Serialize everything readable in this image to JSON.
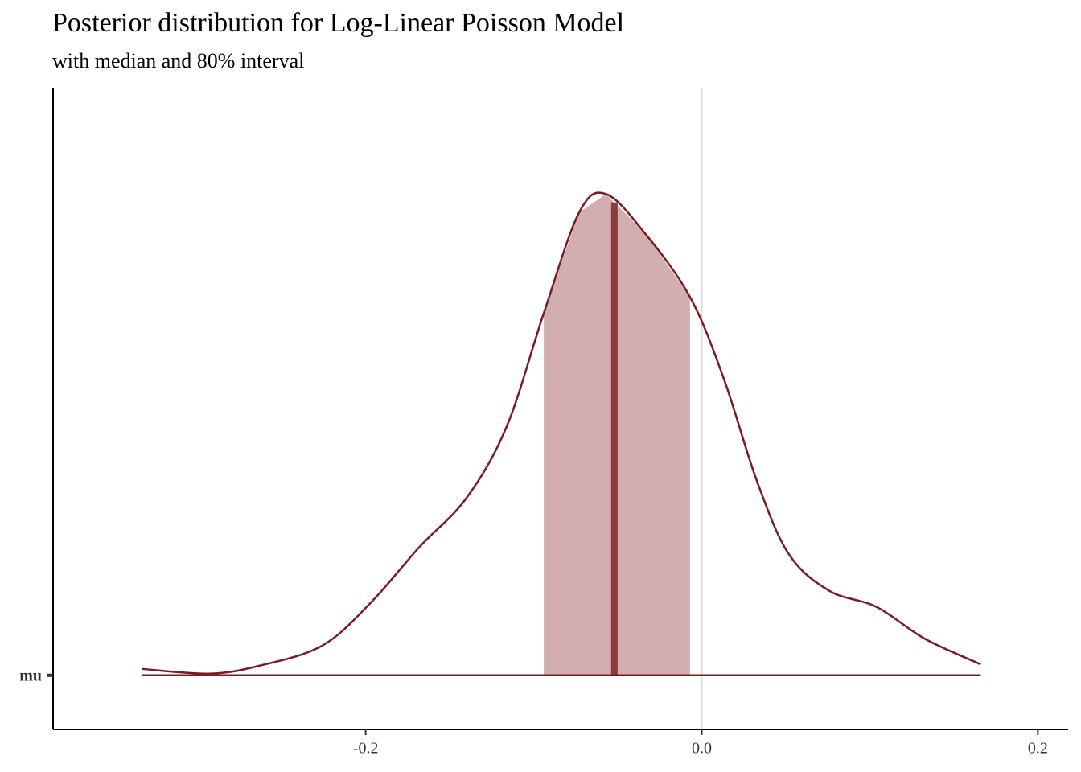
{
  "chart_data": {
    "type": "area",
    "title": "Posterior distribution for Log-Linear Poisson Model",
    "subtitle": "with median and 80% interval",
    "categories": [
      "mu"
    ],
    "x": [
      -0.333,
      -0.293,
      -0.264,
      -0.226,
      -0.197,
      -0.168,
      -0.14,
      -0.116,
      -0.094,
      -0.073,
      -0.057,
      -0.034,
      -0.007,
      0.013,
      0.033,
      0.052,
      0.076,
      0.104,
      0.133,
      0.166
    ],
    "series": [
      {
        "name": "mu",
        "color": "#7b1c22",
        "fill": "#d3aeb0",
        "values": [
          0.076,
          0.02,
          0.11,
          0.35,
          0.86,
          1.52,
          2.1,
          2.95,
          4.29,
          5.48,
          5.7,
          5.24,
          4.48,
          3.52,
          2.29,
          1.43,
          1.0,
          0.81,
          0.43,
          0.13
        ]
      }
    ],
    "interval": [
      -0.094,
      -0.007
    ],
    "median": -0.052,
    "median_color": "#8b3a3e",
    "vline": 0,
    "xlim": [
      -0.386,
      0.218
    ],
    "ylim": [
      -0.64,
      6.95
    ],
    "xticks": [
      -0.2,
      {
        "value": 0,
        "label": "0.0"
      },
      0.2
    ]
  }
}
